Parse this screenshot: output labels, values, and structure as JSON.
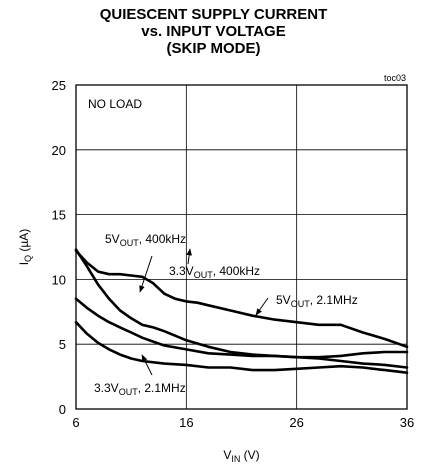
{
  "chart_data": {
    "type": "line",
    "title_lines": [
      "QUIESCENT SUPPLY CURRENT",
      "vs. INPUT VOLTAGE",
      "(SKIP MODE)"
    ],
    "figure_id": "toc03",
    "xlabel": {
      "main": "V",
      "sub": "IN",
      "rest": " (V)"
    },
    "ylabel": {
      "main": "I",
      "sub": "Q",
      "rest": " (µA)"
    },
    "xlim": [
      6,
      36
    ],
    "ylim": [
      0,
      25
    ],
    "x_ticks": [
      6,
      16,
      26,
      36
    ],
    "y_ticks": [
      0,
      5,
      10,
      15,
      20,
      25
    ],
    "grid": true,
    "condition_note": "NO LOAD",
    "series": [
      {
        "name": {
          "main": "5V",
          "sub": "OUT",
          "rest": ", 400kHz"
        },
        "x": [
          6,
          7,
          8,
          9,
          10,
          11,
          12,
          13,
          14,
          15,
          16,
          17,
          18,
          20,
          22,
          24,
          26,
          28,
          30,
          32,
          34,
          36
        ],
        "y": [
          12.2,
          11.3,
          10.6,
          10.4,
          10.4,
          10.3,
          10.2,
          9.7,
          8.9,
          8.5,
          8.3,
          8.2,
          8.0,
          7.6,
          7.2,
          6.9,
          6.7,
          6.5,
          6.5,
          5.9,
          5.4,
          4.8
        ]
      },
      {
        "name": {
          "main": "3.3V",
          "sub": "OUT",
          "rest": ", 400kHz"
        },
        "x": [
          6,
          7,
          8,
          9,
          10,
          11,
          12,
          13,
          14,
          16,
          18,
          20,
          22,
          24,
          26,
          28,
          30,
          32,
          34,
          36
        ],
        "y": [
          12.3,
          11.0,
          9.6,
          8.5,
          7.6,
          7.0,
          6.5,
          6.3,
          6.0,
          5.3,
          4.8,
          4.4,
          4.2,
          4.1,
          4.0,
          4.0,
          4.1,
          4.3,
          4.4,
          4.4
        ]
      },
      {
        "name": {
          "main": "5V",
          "sub": "OUT",
          "rest": ", 2.1MHz"
        },
        "x": [
          6,
          7,
          8,
          9,
          10,
          11,
          12,
          13,
          14,
          16,
          18,
          20,
          22,
          24,
          26,
          28,
          30,
          32,
          34,
          36
        ],
        "y": [
          8.5,
          7.8,
          7.2,
          6.7,
          6.3,
          5.9,
          5.5,
          5.2,
          4.9,
          4.6,
          4.3,
          4.2,
          4.1,
          4.1,
          4.0,
          3.9,
          3.7,
          3.5,
          3.4,
          3.2
        ]
      },
      {
        "name": {
          "main": "3.3V",
          "sub": "OUT",
          "rest": ", 2.1MHz"
        },
        "x": [
          6,
          7,
          8,
          9,
          10,
          11,
          12,
          14,
          16,
          18,
          20,
          22,
          24,
          26,
          28,
          30,
          32,
          34,
          36
        ],
        "y": [
          6.7,
          5.8,
          5.1,
          4.6,
          4.2,
          3.9,
          3.7,
          3.5,
          3.4,
          3.2,
          3.2,
          3.0,
          3.0,
          3.1,
          3.2,
          3.3,
          3.2,
          3.0,
          2.8
        ]
      }
    ]
  }
}
